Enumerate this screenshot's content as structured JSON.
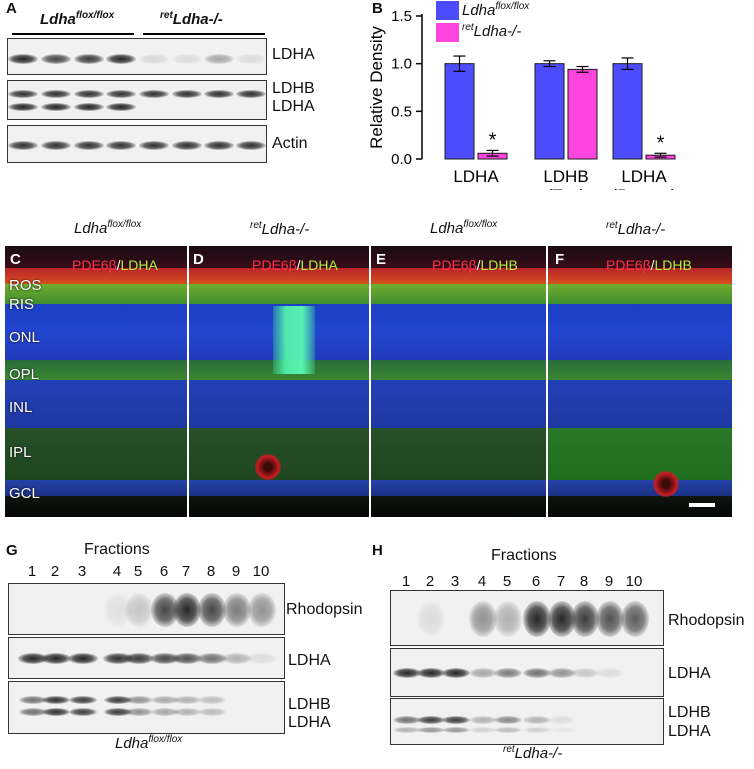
{
  "panel_letters": [
    "A",
    "B",
    "C",
    "D",
    "E",
    "F",
    "G",
    "H"
  ],
  "panelA": {
    "group1": "Ldha",
    "group1_sup": "flox/flox",
    "group2_sup": "ret",
    "group2": "Ldha-/-",
    "labels": [
      "LDHA",
      "LDHB",
      "LDHA",
      "Actin"
    ]
  },
  "panelB": {
    "legend": [
      {
        "sup_pre": "",
        "name": "Ldha",
        "sup": "flox/flox",
        "color": "#4d4dff"
      },
      {
        "sup_pre": "ret",
        "name": "Ldha-/-",
        "sup": "",
        "color": "#ff44dd"
      }
    ],
    "significance": "*"
  },
  "chart_data": {
    "type": "bar",
    "ylabel": "Relative Density",
    "ylim": [
      0,
      1.5
    ],
    "yticks": [
      "0.0",
      "0.5",
      "1.0",
      "1.5"
    ],
    "categories": [
      [
        "LDHA",
        ""
      ],
      [
        "LDHB",
        "(Top)"
      ],
      [
        "LDHA",
        "(Bottom)"
      ]
    ],
    "series": [
      {
        "name": "Ldha flox/flox",
        "color": "#4d4dff",
        "values": [
          1.0,
          1.0,
          1.0
        ],
        "errors": [
          0.08,
          0.03,
          0.06
        ]
      },
      {
        "name": "ret Ldha-/-",
        "color": "#ff44dd",
        "values": [
          0.06,
          0.94,
          0.04
        ],
        "errors": [
          0.03,
          0.03,
          0.02
        ]
      }
    ],
    "significant": [
      true,
      false,
      true
    ]
  },
  "retina": {
    "titles": [
      {
        "pre": "",
        "name": "Ldha",
        "sup": "flox/flox"
      },
      {
        "pre": "ret",
        "name": "Ldha-/-",
        "sup": ""
      },
      {
        "pre": "",
        "name": "Ldha",
        "sup": "flox/flox"
      },
      {
        "pre": "ret",
        "name": "Ldha-/-",
        "sup": ""
      }
    ],
    "stains": [
      {
        "red": "PDE6β",
        "slash": "/",
        "green": "LDHA"
      },
      {
        "red": "PDE6β",
        "slash": "/",
        "green": "LDHA"
      },
      {
        "red": "PDE6β",
        "slash": "/",
        "green": "LDHB"
      },
      {
        "red": "PDE6β",
        "slash": "/",
        "green": "LDHB"
      }
    ],
    "layers": [
      "ROS",
      "RIS",
      "ONL",
      "OPL",
      "INL",
      "IPL",
      "GCL"
    ]
  },
  "panelG": {
    "title": "Fractions",
    "fractions": [
      "1",
      "2",
      "3",
      "4",
      "5",
      "6",
      "7",
      "8",
      "9",
      "10"
    ],
    "labels": [
      "Rhodopsin",
      "LDHA",
      "LDHB",
      "LDHA"
    ],
    "footer_name": "Ldha",
    "footer_sup": "flox/flox"
  },
  "panelH": {
    "title": "Fractions",
    "fractions": [
      "1",
      "2",
      "3",
      "4",
      "5",
      "6",
      "7",
      "8",
      "9",
      "10"
    ],
    "labels": [
      "Rhodopsin",
      "LDHA",
      "LDHB",
      "LDHA"
    ],
    "footer_pre": "ret",
    "footer_name": "Ldha-/-"
  }
}
